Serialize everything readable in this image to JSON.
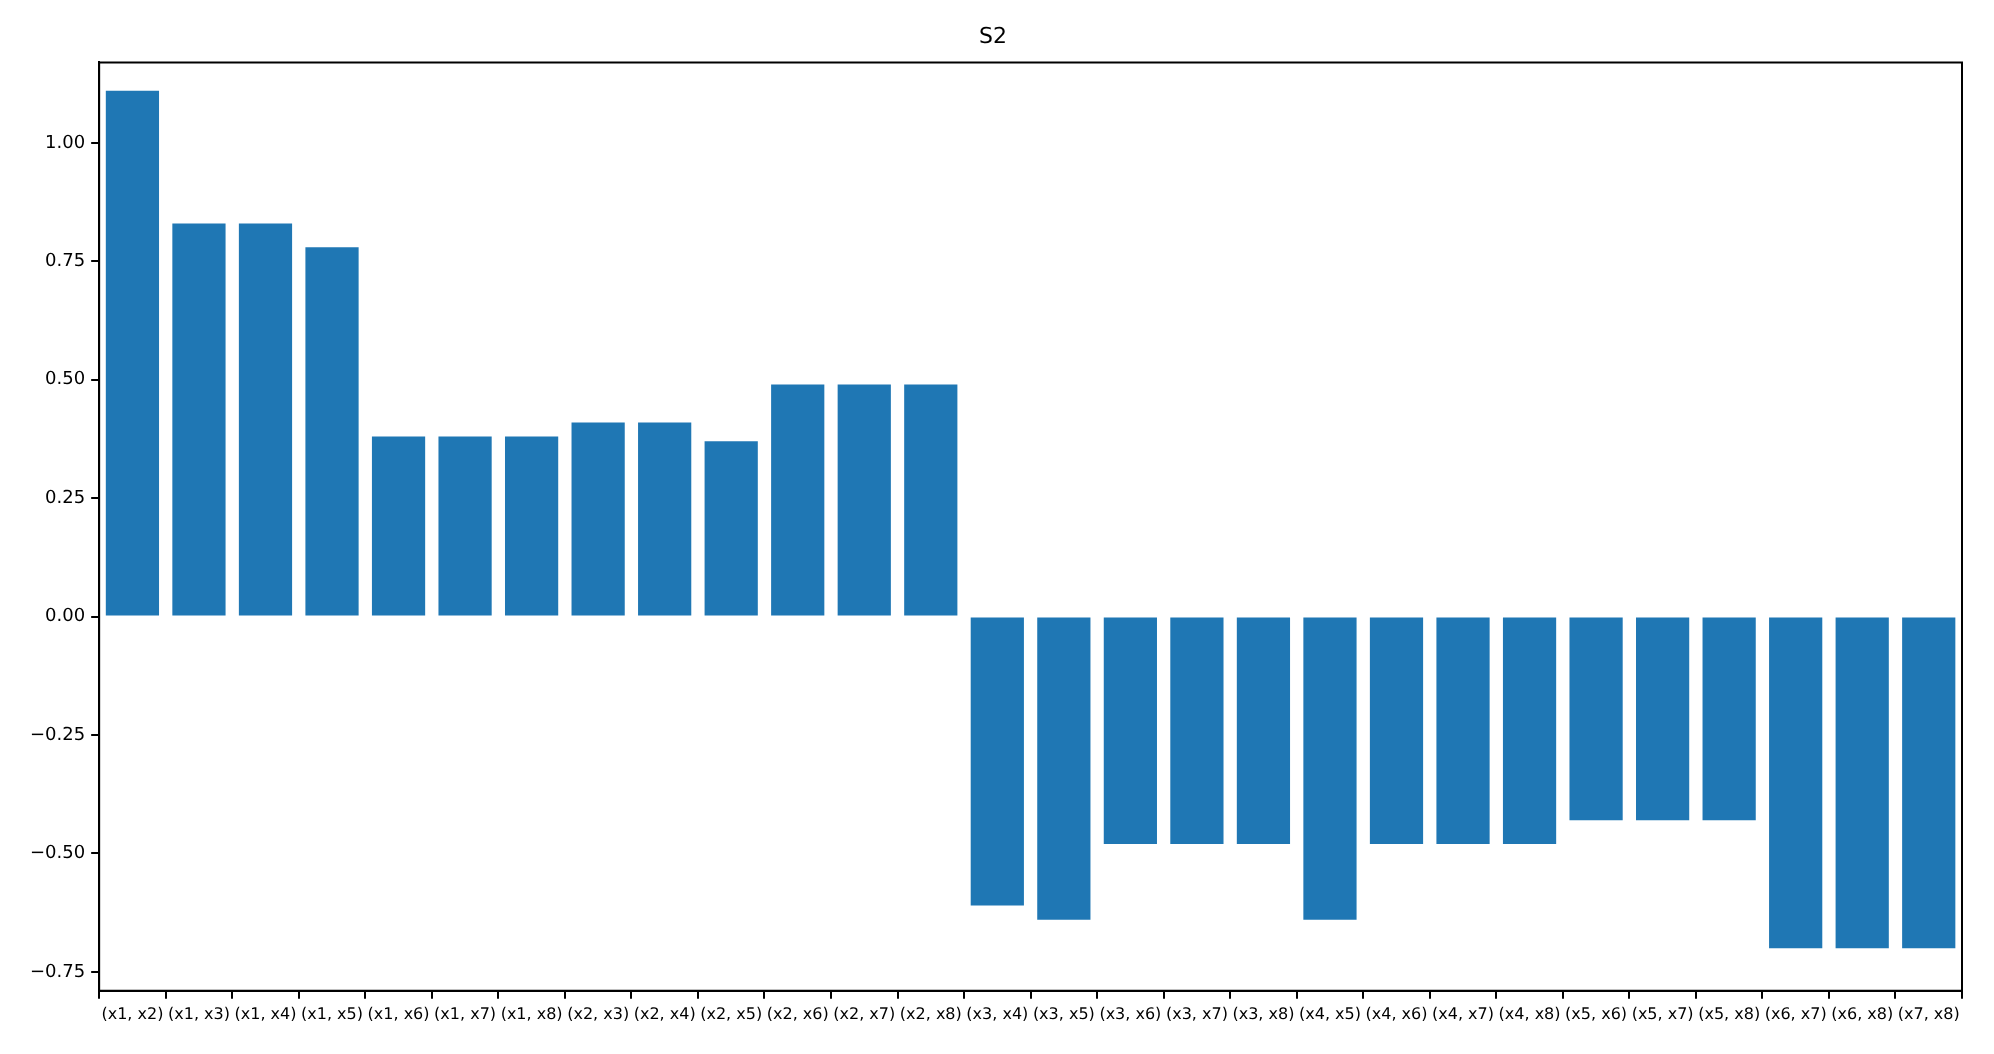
{
  "chart_data": {
    "type": "bar",
    "title": "S2",
    "categories": [
      "(x1, x2)",
      "(x1, x3)",
      "(x1, x4)",
      "(x1, x5)",
      "(x1, x6)",
      "(x1, x7)",
      "(x1, x8)",
      "(x2, x3)",
      "(x2, x4)",
      "(x2, x5)",
      "(x2, x6)",
      "(x2, x7)",
      "(x2, x8)",
      "(x3, x4)",
      "(x3, x5)",
      "(x3, x6)",
      "(x3, x7)",
      "(x3, x8)",
      "(x4, x5)",
      "(x4, x6)",
      "(x4, x7)",
      "(x4, x8)",
      "(x5, x6)",
      "(x5, x7)",
      "(x5, x8)",
      "(x6, x7)",
      "(x6, x8)",
      "(x7, x8)"
    ],
    "values": [
      1.11,
      0.83,
      0.83,
      0.78,
      0.38,
      0.38,
      0.38,
      0.41,
      0.41,
      0.37,
      0.49,
      0.49,
      0.49,
      -0.61,
      -0.64,
      -0.48,
      -0.48,
      -0.48,
      -0.64,
      -0.48,
      -0.48,
      -0.48,
      -0.43,
      -0.43,
      -0.43,
      -0.7,
      -0.7,
      -0.7
    ],
    "color": "#1f77b4",
    "ylim": [
      -0.79,
      1.17
    ],
    "yticks": [
      {
        "value": -0.75,
        "label": "−0.75"
      },
      {
        "value": -0.5,
        "label": "−0.50"
      },
      {
        "value": -0.25,
        "label": "−0.25"
      },
      {
        "value": 0,
        "label": "0.00"
      },
      {
        "value": 0.25,
        "label": "0.25"
      },
      {
        "value": 0.5,
        "label": "0.50"
      },
      {
        "value": 0.75,
        "label": "0.75"
      },
      {
        "value": 1,
        "label": "1.00"
      }
    ],
    "grid": false,
    "legend": false
  }
}
